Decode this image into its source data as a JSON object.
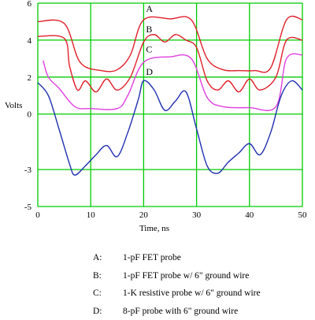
{
  "chart_data": {
    "type": "line",
    "ylabel": "Volts",
    "xlabel": "Time, ns",
    "xlim": [
      0,
      50
    ],
    "ylim": [
      -5,
      6
    ],
    "x_ticks": [
      0,
      10,
      20,
      30,
      40,
      50
    ],
    "y_ticks": [
      6,
      4,
      2,
      0,
      -3,
      -5
    ],
    "grid": true,
    "grid_color": "#00cc00",
    "series": [
      {
        "name": "A",
        "color": "#e0202a",
        "x": [
          0,
          5,
          8,
          12,
          15,
          17.5,
          20,
          25,
          29,
          32,
          35,
          38,
          41,
          44,
          47,
          50
        ],
        "y": [
          5.0,
          4.9,
          2.8,
          2.35,
          2.4,
          3.2,
          5.1,
          5.15,
          5.1,
          3.0,
          2.4,
          2.35,
          2.35,
          2.5,
          5.1,
          5.1
        ]
      },
      {
        "name": "B",
        "color": "#e0202a",
        "x": [
          0,
          5,
          6,
          7.5,
          9,
          11,
          13,
          15,
          17.5,
          20,
          22,
          24,
          26,
          28,
          30,
          32,
          34,
          36,
          38,
          40,
          42,
          45,
          47,
          50
        ],
        "y": [
          4.2,
          4.1,
          2.6,
          1.3,
          1.8,
          1.2,
          1.9,
          1.3,
          2.0,
          3.9,
          4.3,
          3.9,
          4.3,
          4.0,
          3.6,
          1.8,
          1.3,
          1.8,
          1.2,
          1.9,
          1.3,
          2.0,
          4.0,
          4.0
        ]
      },
      {
        "name": "C",
        "color": "#e040e0",
        "x": [
          1,
          2,
          4,
          7,
          10,
          15,
          17,
          20,
          25,
          29,
          32,
          35,
          40,
          45,
          47,
          50
        ],
        "y": [
          2.9,
          2.0,
          1.4,
          0.4,
          0.3,
          0.3,
          1.0,
          2.8,
          3.1,
          3.0,
          0.9,
          0.4,
          0.35,
          0.4,
          3.0,
          3.2
        ]
      },
      {
        "name": "D",
        "color": "#2030b0",
        "x": [
          0,
          2,
          4,
          6,
          7,
          9,
          11,
          13,
          15,
          17,
          19,
          20,
          22,
          24,
          26,
          28,
          30,
          32,
          34,
          36,
          38,
          40,
          42,
          44,
          46,
          48,
          50
        ],
        "y": [
          1.7,
          1.0,
          -0.8,
          -2.7,
          -3.3,
          -2.8,
          -2.2,
          -1.7,
          -2.3,
          -1.0,
          0.8,
          1.8,
          1.3,
          0.2,
          0.7,
          1.2,
          -0.8,
          -2.8,
          -3.2,
          -2.6,
          -2.1,
          -1.6,
          -2.2,
          -1.0,
          1.0,
          1.8,
          1.3
        ]
      }
    ]
  },
  "legend": [
    {
      "key": "A:",
      "text": "1-pF FET probe"
    },
    {
      "key": "B:",
      "text": "1-pF FET probe w/ 6\" ground wire"
    },
    {
      "key": "C:",
      "text": "1-K resistive probe w/ 6\" ground wire"
    },
    {
      "key": "D:",
      "text": "8-pF probe with 6\" ground wire"
    }
  ]
}
